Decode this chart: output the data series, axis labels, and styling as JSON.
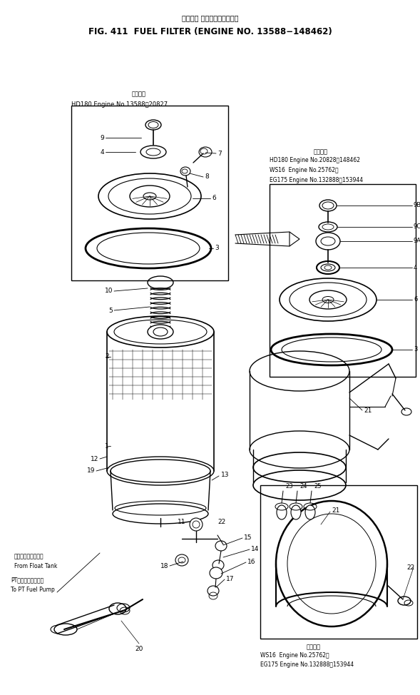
{
  "title_jp": "フェエル フィルタ　適用号機",
  "title_en": "FIG. 411  FUEL FILTER (ENGINE NO. 13588−148462)",
  "bg_color": "#ffffff",
  "line_color": "#000000",
  "box1_label_jp": "適用号機",
  "box1_label": "HD180 Engine No.13588～20827",
  "box2_label_jp": "適用号機",
  "box2_lines": [
    "HD180 Engine No.20828～148462",
    "WS16  Engine No.25762～",
    "EG175 Engine No.132888～153944"
  ],
  "box3_label_jp": "適用号機",
  "box3_lines": [
    "WS16  Engine No.25762～",
    "EG175 Engine No.132888～153944"
  ],
  "label_from_jp": "フロートタンクから",
  "label_from_en": "From Float Tank",
  "label_to_jp": "PTフェエルポンプへ",
  "label_to_en": "To PT Fuel Pump"
}
